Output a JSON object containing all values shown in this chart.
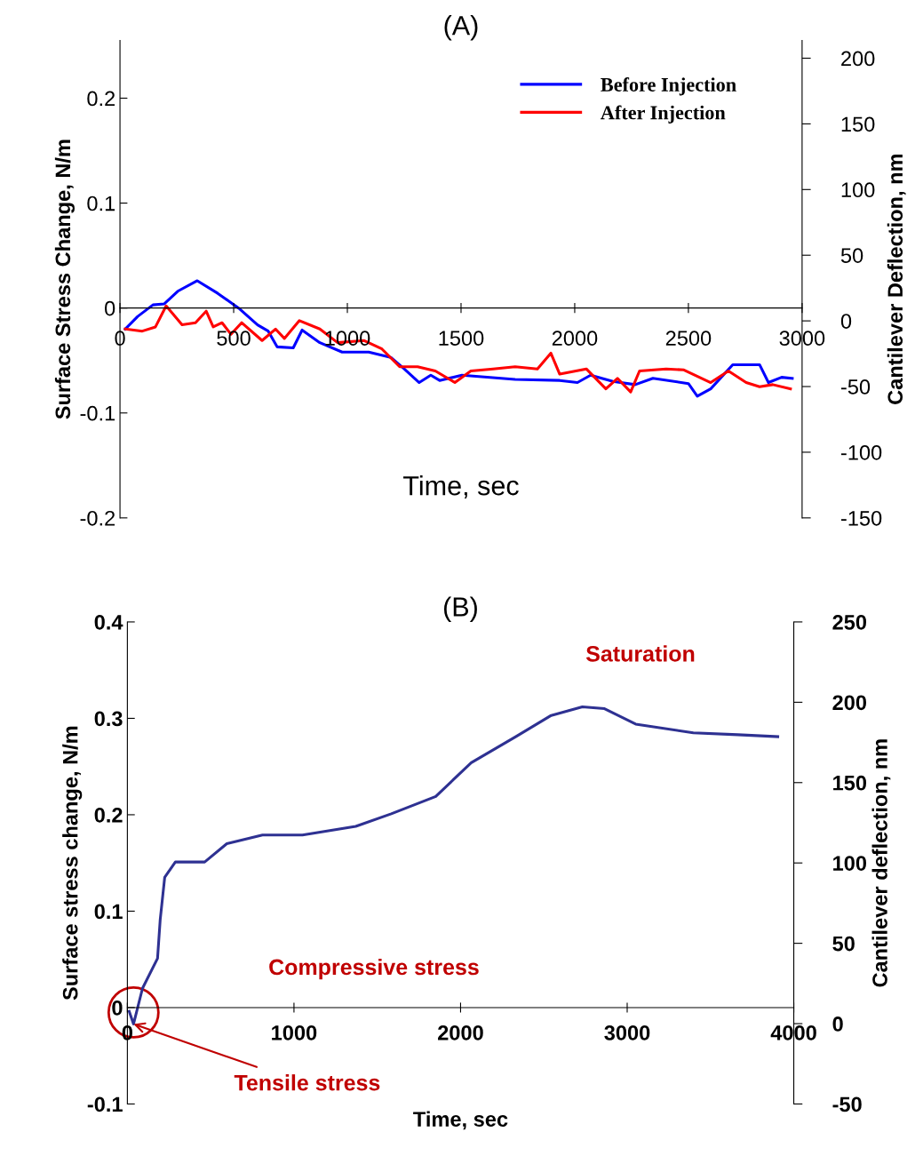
{
  "chart_data": [
    {
      "type": "line",
      "title": "(A)",
      "xlabel": "Time, sec",
      "ylabel": "Surface Stress Change, N/m",
      "y2label": "Cantilever Deflection, nm",
      "xlim": [
        0,
        3000
      ],
      "xticks": [
        0,
        500,
        1000,
        1500,
        2000,
        2500,
        3000
      ],
      "ylim": [
        -0.2,
        0.255
      ],
      "yticks": [
        -0.2,
        -0.1,
        0,
        0.1,
        0.2
      ],
      "y2lim": [
        -150,
        213.5
      ],
      "y2ticks": [
        -150,
        -100,
        -50,
        0,
        50,
        100,
        150,
        200
      ],
      "grid": false,
      "legend": "top right",
      "marker": "none",
      "line_style": "solid",
      "series": [
        {
          "name": "Before Injection",
          "color": "#0000ff",
          "x": [
            23,
            78,
            145,
            195,
            254,
            340,
            430,
            527,
            605,
            652,
            691,
            762,
            801,
            879,
            977,
            1094,
            1191,
            1250,
            1316,
            1367,
            1406,
            1504,
            1738,
            1934,
            2012,
            2070,
            2168,
            2266,
            2344,
            2500,
            2539,
            2598,
            2695,
            2813,
            2852,
            2910,
            2957
          ],
          "values": [
            -0.02,
            -0.008,
            0.003,
            0.004,
            0.016,
            0.026,
            0.014,
            -0.001,
            -0.016,
            -0.022,
            -0.037,
            -0.038,
            -0.021,
            -0.033,
            -0.042,
            -0.042,
            -0.047,
            -0.058,
            -0.071,
            -0.064,
            -0.069,
            -0.064,
            -0.068,
            -0.069,
            -0.071,
            -0.064,
            -0.07,
            -0.073,
            -0.067,
            -0.072,
            -0.084,
            -0.077,
            -0.054,
            -0.054,
            -0.071,
            -0.066,
            -0.067
          ]
        },
        {
          "name": "After Injection",
          "color": "#ff0000",
          "x": [
            23,
            98,
            156,
            203,
            273,
            332,
            379,
            410,
            449,
            488,
            535,
            625,
            684,
            723,
            789,
            879,
            957,
            1074,
            1152,
            1230,
            1309,
            1387,
            1473,
            1543,
            1641,
            1738,
            1836,
            1895,
            1934,
            2051,
            2137,
            2188,
            2246,
            2285,
            2402,
            2480,
            2598,
            2676,
            2754,
            2813,
            2871,
            2949
          ],
          "values": [
            -0.02,
            -0.022,
            -0.018,
            0.002,
            -0.016,
            -0.014,
            -0.003,
            -0.018,
            -0.014,
            -0.025,
            -0.014,
            -0.031,
            -0.02,
            -0.029,
            -0.012,
            -0.02,
            -0.033,
            -0.031,
            -0.039,
            -0.056,
            -0.056,
            -0.06,
            -0.071,
            -0.06,
            -0.058,
            -0.056,
            -0.058,
            -0.043,
            -0.063,
            -0.058,
            -0.077,
            -0.067,
            -0.08,
            -0.06,
            -0.058,
            -0.059,
            -0.071,
            -0.06,
            -0.071,
            -0.075,
            -0.073,
            -0.077
          ]
        }
      ]
    },
    {
      "type": "line",
      "title": "(B)",
      "xlabel": "Time, sec",
      "ylabel": "Surface stress change, N/m",
      "y2label": "Cantilever deflection, nm",
      "xlim": [
        0,
        4000
      ],
      "xticks": [
        0,
        1000,
        2000,
        3000,
        4000
      ],
      "ylim": [
        -0.1,
        0.4
      ],
      "yticks": [
        -0.1,
        0,
        0.1,
        0.2,
        0.3,
        0.4
      ],
      "y2lim": [
        -50,
        250
      ],
      "y2ticks": [
        -50,
        0,
        50,
        100,
        150,
        200,
        250
      ],
      "grid": false,
      "legend": false,
      "marker": "none",
      "line_style": "solid",
      "annotations": [
        "Saturation",
        "Compressive stress",
        {
          "text": "Tensile stress",
          "x": 37,
          "y": -0.017
        }
      ],
      "series": [
        {
          "color": "#2e3192",
          "x": [
            11,
            37,
            91,
            181,
            197,
            224,
            288,
            464,
            597,
            811,
            1051,
            1371,
            1584,
            1851,
            2064,
            2331,
            2544,
            2731,
            2864,
            3051,
            3397,
            3664,
            3904
          ],
          "values": [
            -0.004,
            -0.017,
            0.02,
            0.051,
            0.091,
            0.135,
            0.151,
            0.151,
            0.17,
            0.179,
            0.179,
            0.188,
            0.201,
            0.219,
            0.254,
            0.281,
            0.303,
            0.312,
            0.31,
            0.294,
            0.285,
            0.283,
            0.281
          ]
        }
      ]
    }
  ]
}
